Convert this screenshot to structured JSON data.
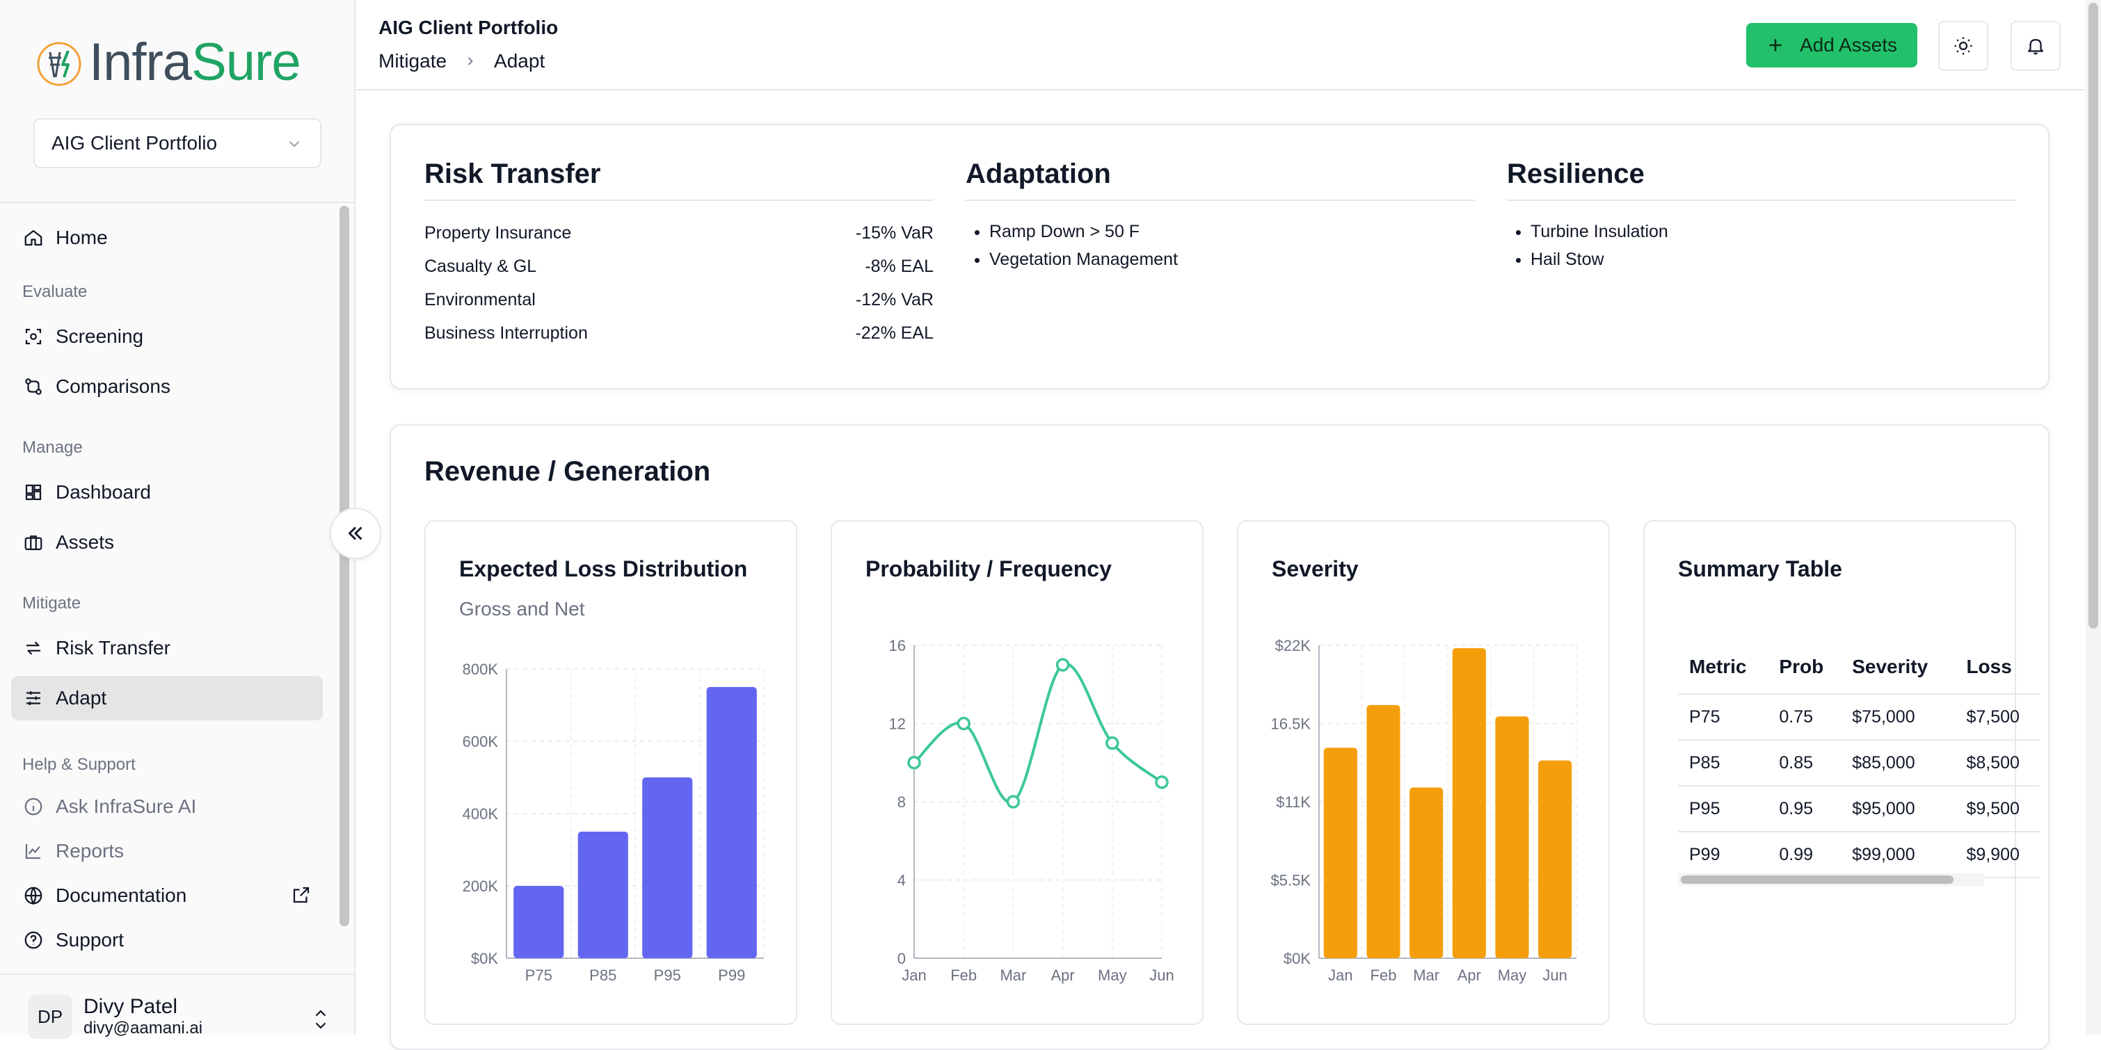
{
  "app": {
    "brand_infra": "Infra",
    "brand_sure": "Sure",
    "portfolio_select": "AIG Client Portfolio"
  },
  "sidebar": {
    "home": "Home",
    "sections": {
      "evaluate": "Evaluate",
      "manage": "Manage",
      "mitigate": "Mitigate",
      "help": "Help & Support"
    },
    "items": {
      "screening": "Screening",
      "comparisons": "Comparisons",
      "dashboard": "Dashboard",
      "assets": "Assets",
      "risk_transfer": "Risk Transfer",
      "adapt": "Adapt",
      "ask_ai": "Ask InfraSure AI",
      "reports": "Reports",
      "documentation": "Documentation",
      "support": "Support"
    },
    "active_item": "Adapt"
  },
  "user": {
    "initials": "DP",
    "name": "Divy Patel",
    "email": "divy@aamani.ai"
  },
  "header": {
    "title": "AIG Client Portfolio",
    "breadcrumb": [
      "Mitigate",
      "Adapt"
    ],
    "add_assets": "Add Assets"
  },
  "risk_transfer": {
    "title": "Risk Transfer",
    "rows": [
      {
        "label": "Property Insurance",
        "value": "-15% VaR"
      },
      {
        "label": "Casualty & GL",
        "value": "-8% EAL"
      },
      {
        "label": "Environmental",
        "value": "-12% VaR"
      },
      {
        "label": "Business Interruption",
        "value": "-22% EAL"
      }
    ]
  },
  "adaptation": {
    "title": "Adaptation",
    "items": [
      "Ramp Down > 50 F",
      "Vegetation Management"
    ]
  },
  "resilience": {
    "title": "Resilience",
    "items": [
      "Turbine Insulation",
      "Hail Stow"
    ]
  },
  "revenue": {
    "title": "Revenue / Generation"
  },
  "chart_data": [
    {
      "type": "bar",
      "title": "Expected Loss Distribution",
      "subtitle": "Gross and Net",
      "categories": [
        "P75",
        "P85",
        "P95",
        "P99"
      ],
      "values": [
        200000,
        350000,
        500000,
        750000
      ],
      "yticks": [
        "$0K",
        "200K",
        "400K",
        "600K",
        "800K"
      ],
      "ylim": [
        0,
        800000
      ],
      "color": "#6366f1",
      "grid": true
    },
    {
      "type": "line",
      "title": "Probability / Frequency",
      "categories": [
        "Jan",
        "Feb",
        "Mar",
        "Apr",
        "May",
        "Jun"
      ],
      "values": [
        10,
        12,
        8,
        15,
        11,
        9
      ],
      "yticks": [
        "0",
        "4",
        "8",
        "12",
        "16"
      ],
      "ylim": [
        0,
        16
      ],
      "color": "#3cc79a",
      "grid": true
    },
    {
      "type": "bar",
      "title": "Severity",
      "categories": [
        "Jan",
        "Feb",
        "Mar",
        "Apr",
        "May",
        "Jun"
      ],
      "values": [
        14800,
        17800,
        12000,
        21800,
        17000,
        13900
      ],
      "yticks": [
        "$0K",
        "$5.5K",
        "$11K",
        "16.5K",
        "$22K"
      ],
      "ylim": [
        0,
        22000
      ],
      "color": "#f59e0b",
      "grid": true
    }
  ],
  "summary_table": {
    "title": "Summary Table",
    "columns": [
      "Metric",
      "Prob",
      "Severity",
      "Loss"
    ],
    "rows": [
      [
        "P75",
        "0.75",
        "$75,000",
        "$7,500"
      ],
      [
        "P85",
        "0.85",
        "$85,000",
        "$8,500"
      ],
      [
        "P95",
        "0.95",
        "$95,000",
        "$9,500"
      ],
      [
        "P99",
        "0.99",
        "$99,000",
        "$9,900"
      ]
    ]
  },
  "colors": {
    "accent_green": "#22c06a",
    "brand_gray": "#3f4e5c",
    "brand_green": "#1fa463"
  }
}
